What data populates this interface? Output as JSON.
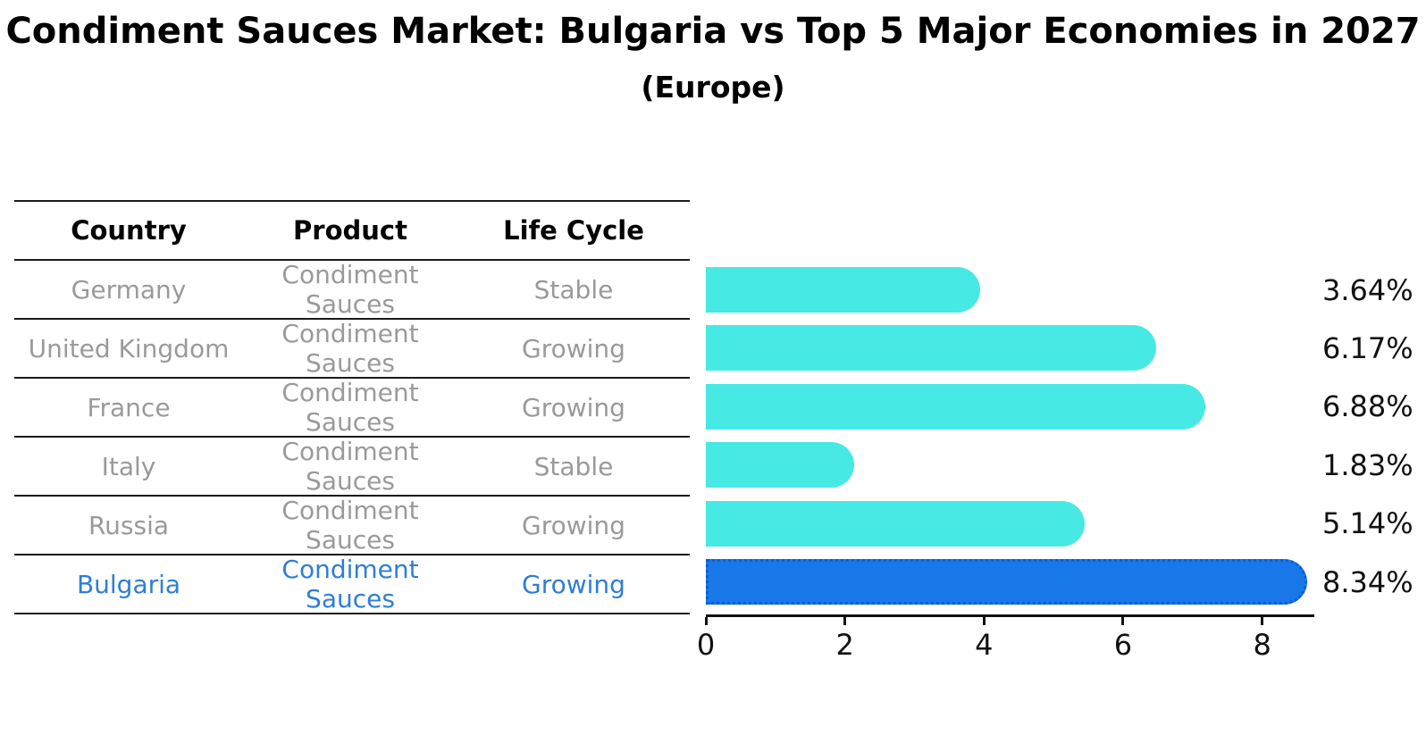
{
  "header": {
    "title": "Condiment Sauces Market: Bulgaria vs Top 5 Major Economies in 2027",
    "subtitle": "(Europe)"
  },
  "table": {
    "columns": [
      "Country",
      "Product",
      "Life Cycle"
    ],
    "rows": [
      {
        "country": "Germany",
        "product": "Condiment Sauces",
        "life_cycle": "Stable",
        "highlight": false
      },
      {
        "country": "United Kingdom",
        "product": "Condiment Sauces",
        "life_cycle": "Growing",
        "highlight": false
      },
      {
        "country": "France",
        "product": "Condiment Sauces",
        "life_cycle": "Growing",
        "highlight": false
      },
      {
        "country": "Italy",
        "product": "Condiment Sauces",
        "life_cycle": "Stable",
        "highlight": false
      },
      {
        "country": "Russia",
        "product": "Condiment Sauces",
        "life_cycle": "Growing",
        "highlight": false
      },
      {
        "country": "Bulgaria",
        "product": "Condiment Sauces",
        "life_cycle": "Growing",
        "highlight": true
      }
    ]
  },
  "chart_data": {
    "type": "bar",
    "orientation": "horizontal",
    "title": "Condiment Sauces Market: Bulgaria vs Top 5 Major Economies in 2027",
    "subtitle": "(Europe)",
    "categories": [
      "Germany",
      "United Kingdom",
      "France",
      "Italy",
      "Russia",
      "Bulgaria"
    ],
    "values": [
      3.64,
      6.17,
      6.88,
      1.83,
      5.14,
      8.34
    ],
    "value_labels": [
      "3.64%",
      "6.17%",
      "6.88%",
      "1.83%",
      "5.14%",
      "8.34%"
    ],
    "x_ticks": [
      "0",
      "2",
      "4",
      "6",
      "8"
    ],
    "xlim": [
      0,
      8.75
    ],
    "grid": false,
    "legend": false,
    "bar_color": "#47E9E4",
    "highlight_color": "#1878E8",
    "highlight_border_color": "#0d5cd8",
    "highlight_index": 5,
    "highlight_text_color": "#2e7ed6",
    "row_text_color": "#9a9a9a"
  }
}
